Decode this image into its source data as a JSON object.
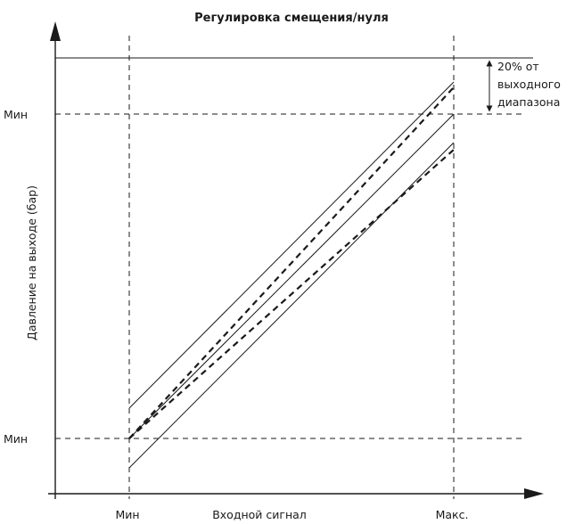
{
  "title": "Регулировка смещения/нуля",
  "y_axis_label": "Давление на выходе (бар)",
  "x_axis_label": "Входной сигнал",
  "y_ticks": {
    "top": "Мин",
    "bottom": "Мин"
  },
  "x_ticks": {
    "left": "Мин",
    "right": "Макс."
  },
  "range_note": {
    "line1": "20% от",
    "line2": "выходного",
    "line3": "диапазона"
  },
  "colors": {
    "ink": "#1a1a1a"
  }
}
